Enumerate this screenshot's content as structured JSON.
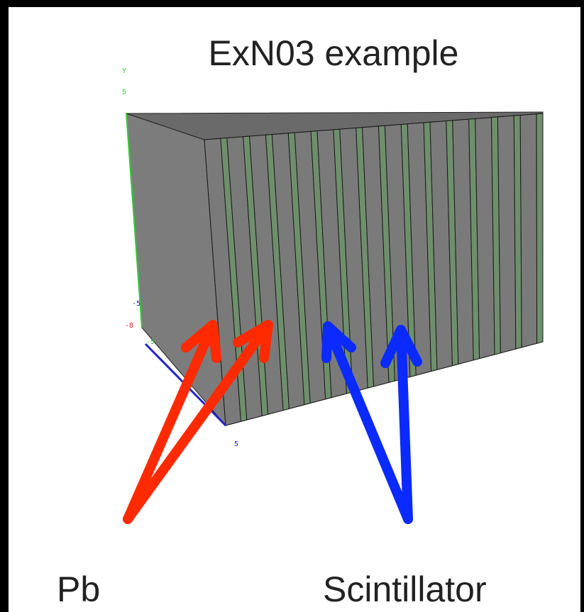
{
  "header": {
    "title": "ExN03 example"
  },
  "axes": {
    "y_name": "Y",
    "y_top": "5",
    "blue_top": "-5",
    "red_tick": "-8",
    "green_bottom": "-5",
    "blue_bottom": "5"
  },
  "labels": {
    "left": "Pb",
    "right": "Scintillator"
  }
}
